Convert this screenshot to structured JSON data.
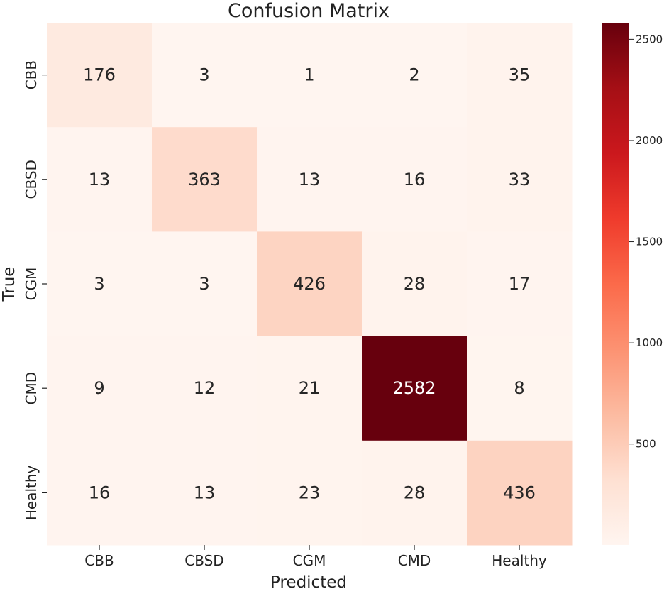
{
  "chart_data": {
    "type": "heatmap",
    "title": "Confusion Matrix",
    "xlabel": "Predicted",
    "ylabel": "True",
    "x_categories": [
      "CBB",
      "CBSD",
      "CGM",
      "CMD",
      "Healthy"
    ],
    "y_categories": [
      "CBB",
      "CBSD",
      "CGM",
      "CMD",
      "Healthy"
    ],
    "values": [
      [
        176,
        3,
        1,
        2,
        35
      ],
      [
        13,
        363,
        13,
        16,
        33
      ],
      [
        3,
        3,
        426,
        28,
        17
      ],
      [
        9,
        12,
        21,
        2582,
        8
      ],
      [
        16,
        13,
        23,
        28,
        436
      ]
    ],
    "colormap": "Reds",
    "value_range": [
      1,
      2582
    ],
    "colorbar_ticks": [
      500,
      1000,
      1500,
      2000,
      2500
    ],
    "annotations": true
  }
}
